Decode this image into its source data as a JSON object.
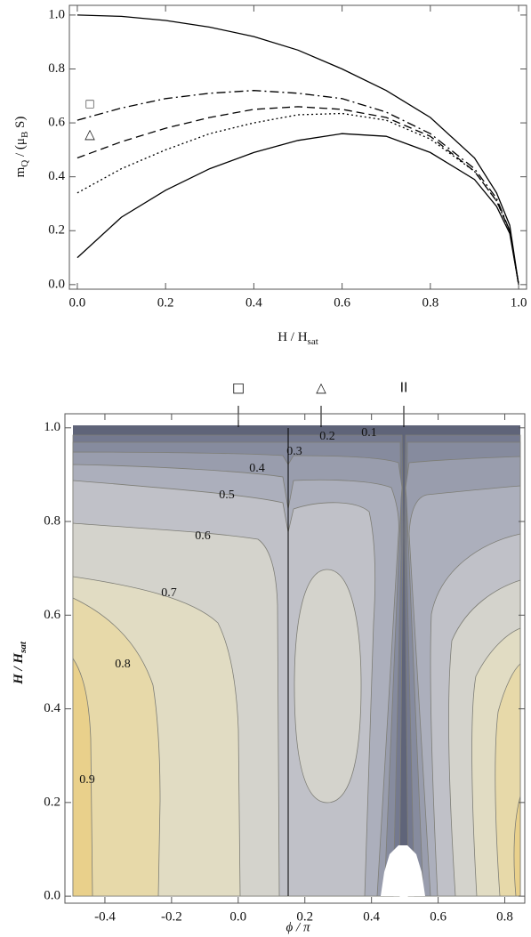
{
  "chart_data": [
    {
      "type": "line",
      "xlabel": [
        "H / H",
        "sat"
      ],
      "ylabel": [
        "m",
        "Q",
        " / (μ",
        "B",
        " S)"
      ],
      "x": [
        0,
        0.1,
        0.2,
        0.3,
        0.4,
        0.5,
        0.6,
        0.7,
        0.8,
        0.9,
        0.95,
        0.98,
        1.0
      ],
      "series": [
        {
          "color": "#000000",
          "style": "solid",
          "values": [
            1.0,
            0.995,
            0.98,
            0.955,
            0.92,
            0.87,
            0.8,
            0.72,
            0.62,
            0.47,
            0.34,
            0.22,
            0
          ]
        },
        {
          "color": "#000000",
          "style": "dashdot",
          "values": [
            0.61,
            0.655,
            0.69,
            0.71,
            0.72,
            0.71,
            0.69,
            0.64,
            0.56,
            0.43,
            0.32,
            0.2,
            0
          ]
        },
        {
          "color": "#000000",
          "style": "dashed",
          "values": [
            0.47,
            0.53,
            0.58,
            0.62,
            0.65,
            0.66,
            0.65,
            0.62,
            0.55,
            0.42,
            0.31,
            0.2,
            0
          ]
        },
        {
          "color": "#000000",
          "style": "dotted",
          "values": [
            0.34,
            0.43,
            0.5,
            0.56,
            0.6,
            0.63,
            0.635,
            0.61,
            0.54,
            0.42,
            0.31,
            0.2,
            0
          ]
        },
        {
          "color": "#000000",
          "style": "solid",
          "values": [
            0.1,
            0.25,
            0.35,
            0.43,
            0.49,
            0.535,
            0.56,
            0.55,
            0.49,
            0.39,
            0.29,
            0.19,
            0
          ]
        }
      ],
      "annotations": [
        "□",
        "△"
      ],
      "xlim": [
        -0.018,
        1.018
      ],
      "ylim": [
        -0.017,
        1.036
      ],
      "xticks": [
        {
          "value": 0,
          "label": "0.0"
        },
        0.2,
        0.4,
        0.6,
        0.8,
        {
          "value": 1,
          "label": "1.0"
        }
      ],
      "yticks": [
        {
          "value": 0,
          "label": "0.0"
        },
        0.2,
        0.4,
        0.6,
        0.8,
        {
          "value": 1,
          "label": "1.0"
        }
      ]
    },
    {
      "type": "contour",
      "xlabel": "ϕ / π",
      "ylabel": [
        "H / H",
        "sat"
      ],
      "markers": [
        "□",
        "△",
        "II"
      ],
      "levels": [
        0.1,
        0.2,
        0.3,
        0.4,
        0.5,
        0.6,
        0.7,
        0.8,
        0.9
      ],
      "colors": [
        "#74798f",
        "#868b9e",
        "#999dad",
        "#acafbc",
        "#c0c1c8",
        "#d4d3cc",
        "#e1dcc3",
        "#e7d9a9",
        "#e9d08b"
      ],
      "xlim": [
        -0.52,
        0.86
      ],
      "ylim": [
        -0.015,
        1.03
      ],
      "xticks": [
        -0.4,
        -0.2,
        {
          "value": 0,
          "label": "0.0"
        },
        0.2,
        0.4,
        0.6,
        0.8
      ],
      "yticks": [
        {
          "value": 0,
          "label": "0.0"
        },
        0.2,
        0.4,
        0.6,
        0.8,
        {
          "value": 1,
          "label": "1.0"
        }
      ]
    }
  ]
}
